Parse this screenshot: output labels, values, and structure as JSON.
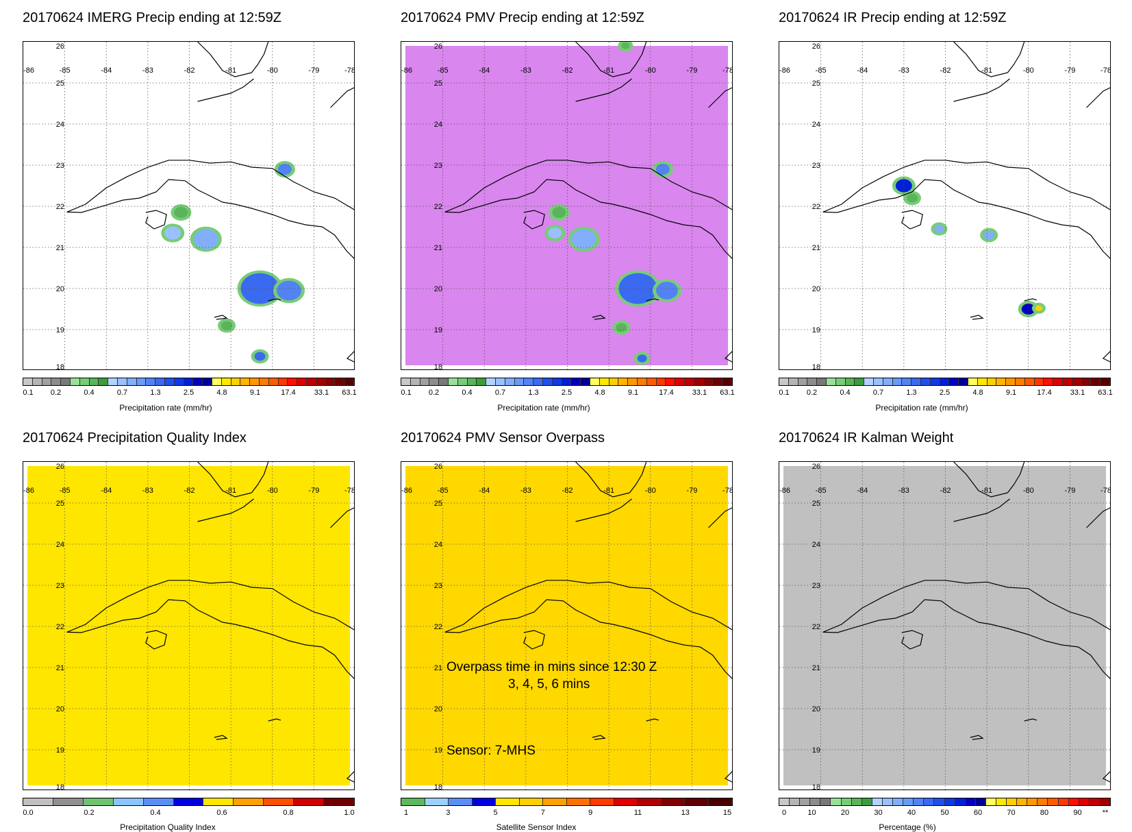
{
  "panels": [
    {
      "title": "20170624 IMERG Precip ending at 12:59Z",
      "bg": "#ffffff",
      "colorbar": "precip",
      "cb_ticks": [
        "0.1",
        "0.2",
        "0.4",
        "0.7",
        "1.3",
        "2.5",
        "4.8",
        "9.1",
        "17.4",
        "33.1",
        "63.1"
      ],
      "cb_label": "Precipitation rate (mm/hr)"
    },
    {
      "title": "20170624 PMV Precip ending at 12:59Z",
      "bg": "#d986ee",
      "colorbar": "precip",
      "cb_ticks": [
        "0.1",
        "0.2",
        "0.4",
        "0.7",
        "1.3",
        "2.5",
        "4.8",
        "9.1",
        "17.4",
        "33.1",
        "63.1"
      ],
      "cb_label": "Precipitation rate (mm/hr)"
    },
    {
      "title": "20170624 IR Precip ending at 12:59Z",
      "bg": "#ffffff",
      "colorbar": "precip",
      "cb_ticks": [
        "0.1",
        "0.2",
        "0.4",
        "0.7",
        "1.3",
        "2.5",
        "4.8",
        "9.1",
        "17.4",
        "33.1",
        "63.1"
      ],
      "cb_label": "Precipitation rate (mm/hr)"
    },
    {
      "title": "20170624 Precipitation Quality Index",
      "bg": "#ffe600",
      "colorbar": "pqi",
      "cb_ticks": [
        "0.0",
        "0.2",
        "0.4",
        "0.6",
        "0.8",
        "1.0"
      ],
      "cb_label": "Precipitation Quality Index"
    },
    {
      "title": "20170624 PMV Sensor Overpass",
      "bg": "#ffd800",
      "colorbar": "sensor",
      "cb_ticks": [
        "1",
        "3",
        "5",
        "7",
        "9",
        "11",
        "13",
        "15"
      ],
      "cb_label": "Satellite Sensor Index"
    },
    {
      "title": "20170624 IR Kalman Weight",
      "bg": "#c0c0c0",
      "colorbar": "percent",
      "cb_ticks": [
        "0",
        "10",
        "20",
        "30",
        "40",
        "50",
        "60",
        "70",
        "80",
        "90",
        "**"
      ],
      "cb_label": "Percentage (%)"
    }
  ],
  "lon_labels": [
    "-86",
    "-85",
    "-84",
    "-83",
    "-82",
    "-81",
    "-80",
    "-79",
    "-78"
  ],
  "lat_labels": [
    "26",
    "25",
    "24",
    "23",
    "22",
    "21",
    "20",
    "19",
    "18"
  ],
  "overpass_annotation": {
    "line1": "Overpass time in mins since 12:30 Z",
    "line2": "3, 4, 5, 6 mins",
    "line3": "Sensor:   7-MHS"
  },
  "colors": {
    "precip": [
      "#c8c8c8",
      "#b4b4b4",
      "#a0a0a0",
      "#8c8c8c",
      "#787878",
      "#98e098",
      "#78cc78",
      "#5ab45a",
      "#3c9c3c",
      "#b4d2ff",
      "#9ac0ff",
      "#82aefc",
      "#6a9af8",
      "#5282f4",
      "#3a6af0",
      "#2050ec",
      "#1038e4",
      "#0020d8",
      "#0000c0",
      "#000098",
      "#ffff60",
      "#ffe800",
      "#ffd000",
      "#ffb400",
      "#ff9800",
      "#ff7c00",
      "#ff5c00",
      "#ff3800",
      "#ff1000",
      "#e00000",
      "#c00000",
      "#a00000",
      "#880000",
      "#700000",
      "#5a0000"
    ],
    "pqi": [
      "#c0c0c0",
      "#909090",
      "#6fc36f",
      "#8cc4ff",
      "#5a8ef5",
      "#0000e0",
      "#ffe600",
      "#ffa000",
      "#ff5000",
      "#d00000",
      "#700000"
    ],
    "sensor": [
      "#5cb85c",
      "#9ed0ff",
      "#5a8ef5",
      "#0000e0",
      "#ffe600",
      "#ffd000",
      "#ffa000",
      "#ff7000",
      "#ff3c00",
      "#e00000",
      "#b00000",
      "#800000",
      "#600000",
      "#4a0000"
    ],
    "percent": [
      "#c8c8c8",
      "#b4b4b4",
      "#a0a0a0",
      "#8c8c8c",
      "#787878",
      "#98e098",
      "#78cc78",
      "#5ab45a",
      "#3c9c3c",
      "#b4d2ff",
      "#9ac0ff",
      "#82aefc",
      "#6a9af8",
      "#5282f4",
      "#3a6af0",
      "#2050ec",
      "#1038e4",
      "#0020d8",
      "#0000c0",
      "#000098",
      "#ffff60",
      "#ffe800",
      "#ffd000",
      "#ffb400",
      "#ff9800",
      "#ff7c00",
      "#ff5c00",
      "#ff3800",
      "#ff1000",
      "#e00000",
      "#c00000",
      "#a00000"
    ]
  }
}
